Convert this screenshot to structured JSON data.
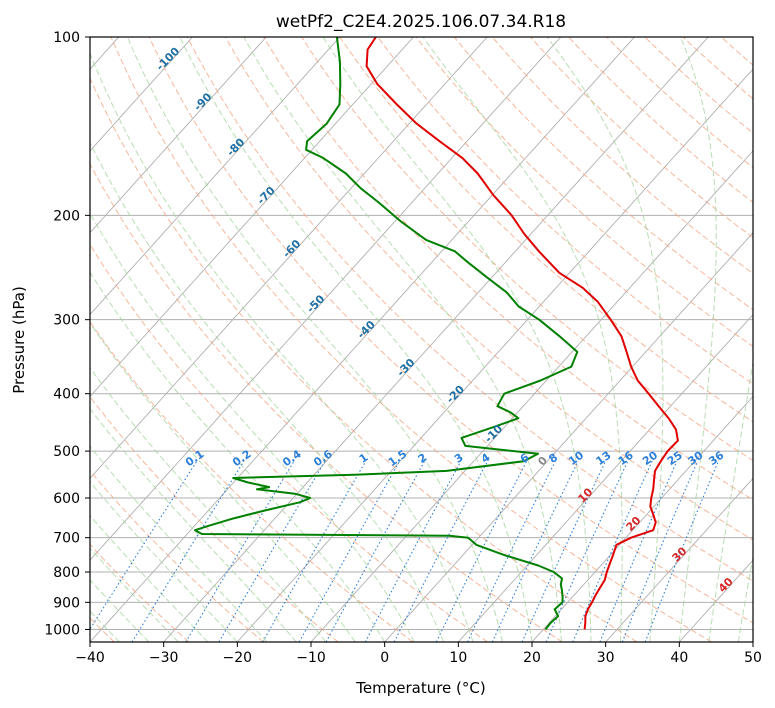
{
  "chart_data": {
    "type": "line",
    "subtype": "skew-T log-P diagram",
    "title": "wetPf2_C2E4.2025.106.07.34.R18",
    "xlabel": "Temperature (°C)",
    "ylabel": "Pressure (hPa)",
    "xlim": [
      -40,
      50
    ],
    "ylim": [
      1050,
      100
    ],
    "yscale": "log",
    "grid": true,
    "x_ticks": [
      "−40",
      "−30",
      "−20",
      "−10",
      "0",
      "10",
      "20",
      "30",
      "40",
      "50"
    ],
    "y_ticks": [
      "100",
      "200",
      "300",
      "400",
      "500",
      "600",
      "700",
      "800",
      "900",
      "1000"
    ],
    "x_tick_values": [
      -40,
      -30,
      -20,
      -10,
      0,
      10,
      20,
      30,
      40,
      50
    ],
    "y_tick_values": [
      100,
      200,
      300,
      400,
      500,
      600,
      700,
      800,
      900,
      1000
    ],
    "series": [
      {
        "role": "temperature",
        "color": "#e00000",
        "points": [
          [
            1000,
            25.6
          ],
          [
            975,
            24.9
          ],
          [
            950,
            24.1
          ],
          [
            925,
            23.6
          ],
          [
            900,
            23.3
          ],
          [
            875,
            22.9
          ],
          [
            850,
            22.6
          ],
          [
            825,
            22.3
          ],
          [
            800,
            21.6
          ],
          [
            775,
            21.0
          ],
          [
            750,
            20.4
          ],
          [
            720,
            19.6
          ],
          [
            700,
            20.7
          ],
          [
            680,
            22.8
          ],
          [
            660,
            22.2
          ],
          [
            640,
            20.9
          ],
          [
            620,
            19.5
          ],
          [
            600,
            18.6
          ],
          [
            580,
            17.8
          ],
          [
            560,
            16.8
          ],
          [
            540,
            15.8
          ],
          [
            520,
            15.4
          ],
          [
            500,
            15.1
          ],
          [
            480,
            15.2
          ],
          [
            460,
            13.6
          ],
          [
            440,
            11.2
          ],
          [
            420,
            8.4
          ],
          [
            400,
            5.5
          ],
          [
            380,
            2.4
          ],
          [
            360,
            -0.2
          ],
          [
            340,
            -2.6
          ],
          [
            320,
            -5.2
          ],
          [
            300,
            -8.7
          ],
          [
            280,
            -12.6
          ],
          [
            265,
            -16.4
          ],
          [
            250,
            -21.4
          ],
          [
            230,
            -26.8
          ],
          [
            215,
            -30.9
          ],
          [
            200,
            -34.9
          ],
          [
            185,
            -39.8
          ],
          [
            170,
            -44.6
          ],
          [
            160,
            -48.6
          ],
          [
            150,
            -53.7
          ],
          [
            140,
            -59.0
          ],
          [
            130,
            -64.0
          ],
          [
            120,
            -69.2
          ],
          [
            112,
            -72.8
          ],
          [
            105,
            -74.7
          ],
          [
            100,
            -75.1
          ]
        ]
      },
      {
        "role": "dewpoint",
        "color": "#008000",
        "points": [
          [
            1000,
            20.3
          ],
          [
            975,
            20.2
          ],
          [
            950,
            20.4
          ],
          [
            925,
            19.1
          ],
          [
            900,
            19.3
          ],
          [
            880,
            18.6
          ],
          [
            860,
            17.8
          ],
          [
            840,
            16.9
          ],
          [
            820,
            16.3
          ],
          [
            800,
            14.4
          ],
          [
            780,
            11.5
          ],
          [
            750,
            5.8
          ],
          [
            720,
            0.6
          ],
          [
            700,
            -1.4
          ],
          [
            695,
            -4.2
          ],
          [
            690,
            -38.0
          ],
          [
            680,
            -39.4
          ],
          [
            670,
            -38.3
          ],
          [
            650,
            -35.7
          ],
          [
            630,
            -32.4
          ],
          [
            610,
            -28.6
          ],
          [
            600,
            -27.7
          ],
          [
            590,
            -30.3
          ],
          [
            580,
            -36.0
          ],
          [
            575,
            -34.6
          ],
          [
            565,
            -38.0
          ],
          [
            555,
            -40.6
          ],
          [
            548,
            -24.5
          ],
          [
            540,
            -12.5
          ],
          [
            520,
            -3.2
          ],
          [
            505,
            -2.2
          ],
          [
            490,
            -13.0
          ],
          [
            475,
            -14.5
          ],
          [
            455,
            -11.4
          ],
          [
            440,
            -9.2
          ],
          [
            430,
            -11.0
          ],
          [
            420,
            -13.5
          ],
          [
            400,
            -14.1
          ],
          [
            380,
            -10.8
          ],
          [
            360,
            -8.3
          ],
          [
            340,
            -9.3
          ],
          [
            320,
            -13.6
          ],
          [
            300,
            -18.4
          ],
          [
            285,
            -22.8
          ],
          [
            270,
            -26.1
          ],
          [
            255,
            -30.5
          ],
          [
            240,
            -35.1
          ],
          [
            230,
            -38.2
          ],
          [
            220,
            -43.5
          ],
          [
            205,
            -49.1
          ],
          [
            190,
            -54.6
          ],
          [
            180,
            -58.7
          ],
          [
            170,
            -62.5
          ],
          [
            160,
            -67.5
          ],
          [
            155,
            -70.8
          ],
          [
            150,
            -71.7
          ],
          [
            140,
            -71.2
          ],
          [
            130,
            -71.8
          ],
          [
            120,
            -74.2
          ],
          [
            110,
            -77.0
          ],
          [
            100,
            -80.4
          ]
        ]
      }
    ],
    "dry_adiabat_labels": [
      {
        "text": "-100",
        "p": 110
      },
      {
        "text": "-90",
        "p": 130
      },
      {
        "text": "-80",
        "p": 155
      },
      {
        "text": "-70",
        "p": 187
      },
      {
        "text": "-60",
        "p": 230
      },
      {
        "text": "-50",
        "p": 285
      },
      {
        "text": "-40",
        "p": 315
      },
      {
        "text": "-30",
        "p": 365
      },
      {
        "text": "-20",
        "p": 405
      },
      {
        "text": "-10",
        "p": 472
      },
      {
        "text": "0",
        "p": 525
      },
      {
        "text": "10",
        "p": 600
      },
      {
        "text": "20",
        "p": 670
      },
      {
        "text": "30",
        "p": 755
      },
      {
        "text": "40",
        "p": 850
      }
    ],
    "mixing_ratio_labels": [
      "0.1",
      "0.2",
      "0.4",
      "0.6",
      "1",
      "1.5",
      "2",
      "3",
      "4",
      "6",
      "8",
      "10",
      "13",
      "16",
      "20",
      "25",
      "30",
      "36"
    ],
    "colors": {
      "isotherm": "#b0b0b0",
      "isobar": "#b0b0b0",
      "dry_adiabat": "#f4a582",
      "moist_adiabat": "#a6d5a0",
      "mixing_ratio": "#2c7fd8",
      "label_cold": "#1f6fa3",
      "label_warm": "#d62728",
      "label_zero": "#888888"
    }
  }
}
